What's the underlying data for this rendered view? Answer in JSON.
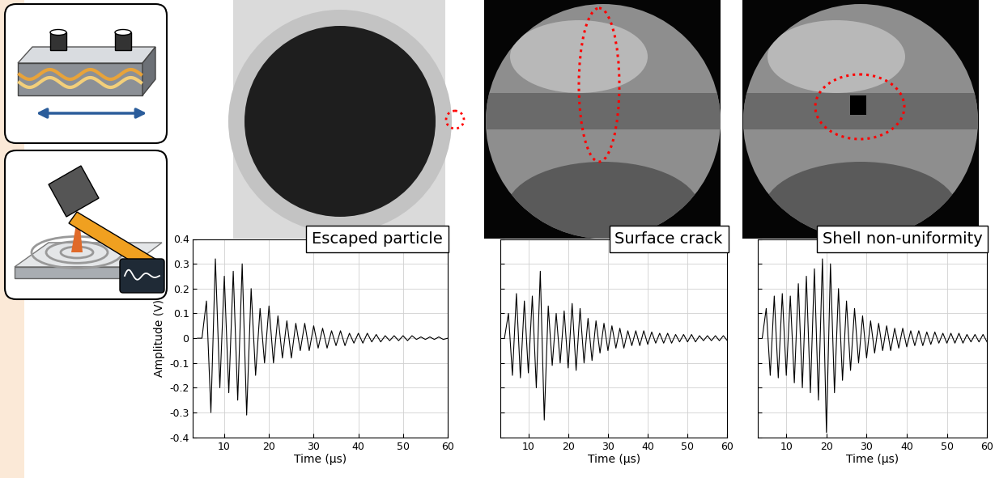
{
  "chart_data": [
    {
      "type": "line",
      "annotation": "Escaped particle",
      "x_label": "Time (μs)",
      "y_label": "Amplitude (V)",
      "color": "#000000",
      "grid": true,
      "xlim": [
        3,
        60
      ],
      "xticks": [
        10,
        20,
        30,
        40,
        50,
        60
      ],
      "ylim": [
        -0.4,
        0.4
      ],
      "yticks": [
        -0.4,
        -0.3,
        -0.2,
        -0.1,
        0,
        0.1,
        0.2,
        0.3,
        0.4
      ],
      "x": [
        4,
        5,
        6,
        7,
        8,
        9,
        10,
        11,
        12,
        13,
        14,
        15,
        16,
        17,
        18,
        19,
        20,
        21,
        22,
        23,
        24,
        25,
        26,
        27,
        28,
        29,
        30,
        31,
        32,
        33,
        34,
        35,
        36,
        37,
        38,
        39,
        40,
        41,
        42,
        43,
        44,
        45,
        46,
        47,
        48,
        49,
        50,
        51,
        52,
        53,
        54,
        55,
        56,
        57,
        58,
        59,
        60
      ],
      "values": [
        0,
        0,
        0.15,
        -0.3,
        0.32,
        -0.2,
        0.25,
        -0.22,
        0.27,
        -0.25,
        0.3,
        -0.31,
        0.2,
        -0.15,
        0.12,
        -0.1,
        0.13,
        -0.1,
        0.09,
        -0.08,
        0.07,
        -0.08,
        0.06,
        -0.05,
        0.06,
        -0.05,
        0.05,
        -0.04,
        0.04,
        -0.04,
        0.03,
        -0.03,
        0.03,
        -0.03,
        0.02,
        -0.02,
        0.02,
        -0.02,
        0.02,
        -0.015,
        0.015,
        -0.015,
        0.01,
        -0.01,
        0.01,
        -0.01,
        0.01,
        -0.01,
        0.01,
        -0.005,
        0.005,
        -0.005,
        0.005,
        -0.005,
        0.005,
        -0.005,
        0
      ]
    },
    {
      "type": "line",
      "annotation": "Surface crack",
      "x_label": "Time (μs)",
      "color": "#000000",
      "grid": true,
      "tick_labels": "x",
      "xlim": [
        3,
        60
      ],
      "xticks": [
        10,
        20,
        30,
        40,
        50,
        60
      ],
      "ylim": [
        -0.4,
        0.4
      ],
      "yticks": [
        -0.4,
        -0.3,
        -0.2,
        -0.1,
        0,
        0.1,
        0.2,
        0.3,
        0.4
      ],
      "x": [
        4,
        5,
        6,
        7,
        8,
        9,
        10,
        11,
        12,
        13,
        14,
        15,
        16,
        17,
        18,
        19,
        20,
        21,
        22,
        23,
        24,
        25,
        26,
        27,
        28,
        29,
        30,
        31,
        32,
        33,
        34,
        35,
        36,
        37,
        38,
        39,
        40,
        41,
        42,
        43,
        44,
        45,
        46,
        47,
        48,
        49,
        50,
        51,
        52,
        53,
        54,
        55,
        56,
        57,
        58,
        59,
        60
      ],
      "values": [
        0,
        0.1,
        -0.15,
        0.18,
        -0.16,
        0.15,
        -0.14,
        0.17,
        -0.2,
        0.27,
        -0.33,
        0.13,
        -0.11,
        0.1,
        -0.1,
        0.11,
        -0.12,
        0.14,
        -0.13,
        0.12,
        -0.1,
        0.08,
        -0.09,
        0.07,
        -0.06,
        0.06,
        -0.05,
        0.05,
        -0.04,
        0.04,
        -0.04,
        0.03,
        -0.03,
        0.03,
        -0.03,
        0.03,
        -0.025,
        0.025,
        -0.02,
        0.02,
        -0.02,
        0.02,
        -0.02,
        0.015,
        -0.015,
        0.015,
        -0.015,
        0.015,
        -0.015,
        0.01,
        -0.01,
        0.01,
        -0.01,
        0.01,
        -0.01,
        0.01,
        -0.01
      ]
    },
    {
      "type": "line",
      "annotation": "Shell non-uniformity",
      "x_label": "Time (μs)",
      "color": "#000000",
      "grid": true,
      "tick_labels": "x",
      "xlim": [
        3,
        60
      ],
      "xticks": [
        10,
        20,
        30,
        40,
        50,
        60
      ],
      "ylim": [
        -0.4,
        0.4
      ],
      "yticks": [
        -0.4,
        -0.3,
        -0.2,
        -0.1,
        0,
        0.1,
        0.2,
        0.3,
        0.4
      ],
      "x": [
        4,
        5,
        6,
        7,
        8,
        9,
        10,
        11,
        12,
        13,
        14,
        15,
        16,
        17,
        18,
        19,
        20,
        21,
        22,
        23,
        24,
        25,
        26,
        27,
        28,
        29,
        30,
        31,
        32,
        33,
        34,
        35,
        36,
        37,
        38,
        39,
        40,
        41,
        42,
        43,
        44,
        45,
        46,
        47,
        48,
        49,
        50,
        51,
        52,
        53,
        54,
        55,
        56,
        57,
        58,
        59,
        60
      ],
      "values": [
        0,
        0.12,
        -0.15,
        0.17,
        -0.16,
        0.18,
        -0.15,
        0.17,
        -0.18,
        0.22,
        -0.2,
        0.25,
        -0.22,
        0.28,
        -0.25,
        0.32,
        -0.38,
        0.3,
        -0.22,
        0.2,
        -0.17,
        0.15,
        -0.13,
        0.12,
        -0.1,
        0.09,
        -0.08,
        0.07,
        -0.06,
        0.06,
        -0.05,
        0.05,
        -0.05,
        0.04,
        -0.04,
        0.04,
        -0.035,
        0.03,
        -0.03,
        0.03,
        -0.03,
        0.025,
        -0.025,
        0.025,
        -0.02,
        0.02,
        -0.02,
        0.02,
        -0.02,
        0.02,
        -0.02,
        0.015,
        -0.015,
        0.015,
        -0.015,
        0.015,
        -0.015
      ]
    }
  ]
}
